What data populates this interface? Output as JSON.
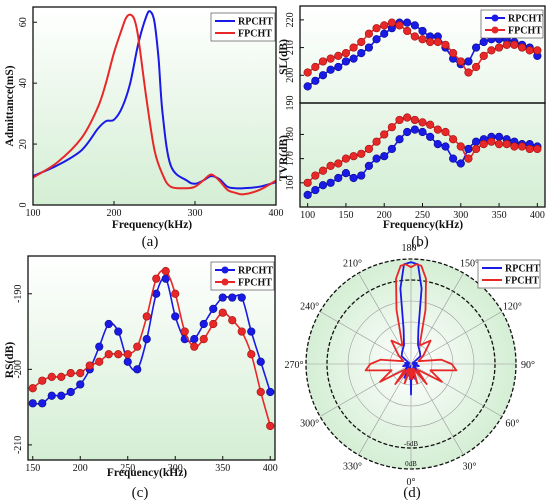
{
  "colors": {
    "blue": "#1a1ae6",
    "red": "#e82828",
    "bg_top": "#ffffff",
    "bg_bottom": "#d4eed4"
  },
  "legend": {
    "rp": "RPCHT",
    "fp": "FPCHT"
  },
  "chart_data": [
    {
      "type": "line",
      "panel": "(a)",
      "xlabel": "Frequency(kHz)",
      "ylabel": "Admittance(mS)",
      "xlim": [
        100,
        400
      ],
      "ylim": [
        0,
        65
      ],
      "xticks": [
        100,
        200,
        300,
        400
      ],
      "yticks": [
        0,
        20,
        40,
        60
      ],
      "series": [
        {
          "name": "RPCHT",
          "x": [
            100,
            130,
            160,
            180,
            190,
            200,
            210,
            220,
            230,
            240,
            245,
            250,
            255,
            260,
            270,
            290,
            300,
            310,
            320,
            330,
            340,
            350,
            360,
            380,
            400
          ],
          "y": [
            9.5,
            13,
            18,
            25,
            27.5,
            28,
            32,
            40,
            53,
            62,
            63.5,
            60,
            48,
            30,
            13,
            8,
            7,
            8,
            9.5,
            8.5,
            6,
            5.5,
            5.5,
            6,
            7.5
          ]
        },
        {
          "name": "FPCHT",
          "x": [
            100,
            130,
            160,
            180,
            190,
            200,
            210,
            215,
            220,
            225,
            230,
            240,
            250,
            260,
            270,
            290,
            300,
            310,
            320,
            330,
            340,
            350,
            360,
            380,
            400
          ],
          "y": [
            9,
            14,
            22,
            32,
            40,
            50,
            58,
            61.5,
            62.5,
            61,
            55,
            35,
            18,
            10,
            6,
            5.5,
            6,
            8,
            10,
            8,
            5,
            4,
            3.5,
            5,
            8
          ]
        }
      ]
    },
    {
      "type": "line",
      "panel": "(b) upper",
      "xlabel": "",
      "ylabel": "SL(dB)",
      "xlim": [
        90,
        410
      ],
      "ylim": [
        190,
        225
      ],
      "xticks": [
        100,
        150,
        200,
        250,
        300,
        350,
        400
      ],
      "yticks": [
        190,
        200,
        210,
        220
      ],
      "series": [
        {
          "name": "RPCHT",
          "x": [
            100,
            110,
            120,
            130,
            140,
            150,
            160,
            170,
            180,
            190,
            200,
            210,
            220,
            230,
            240,
            250,
            260,
            270,
            280,
            290,
            300,
            310,
            320,
            330,
            340,
            350,
            360,
            370,
            380,
            390,
            400
          ],
          "y": [
            196,
            198,
            200,
            202,
            203,
            205,
            206,
            208,
            210,
            213,
            215,
            217,
            219,
            219,
            218,
            216,
            214,
            214,
            210,
            206,
            204,
            205,
            210,
            212,
            213,
            213,
            213,
            212,
            211,
            210,
            207
          ]
        },
        {
          "name": "FPCHT",
          "x": [
            100,
            110,
            120,
            130,
            140,
            150,
            160,
            170,
            180,
            190,
            200,
            210,
            220,
            230,
            240,
            250,
            260,
            270,
            280,
            290,
            300,
            310,
            320,
            330,
            340,
            350,
            360,
            370,
            380,
            390,
            400
          ],
          "y": [
            201,
            203,
            205,
            206,
            207,
            208,
            210,
            212,
            215,
            217,
            218,
            219,
            218,
            216,
            214,
            213,
            212,
            212,
            211,
            208,
            205,
            201,
            203,
            207,
            209,
            210,
            211,
            211,
            210,
            209,
            209
          ]
        }
      ]
    },
    {
      "type": "line",
      "panel": "(b) lower",
      "xlabel": "Frequency(kHz)",
      "ylabel": "TVR(dB)",
      "xlim": [
        90,
        410
      ],
      "ylim": [
        150,
        193
      ],
      "xticks": [
        100,
        150,
        200,
        250,
        300,
        350,
        400
      ],
      "yticks": [
        160,
        170,
        180
      ],
      "series": [
        {
          "name": "RPCHT",
          "x": [
            100,
            110,
            120,
            130,
            140,
            150,
            160,
            170,
            180,
            190,
            200,
            210,
            220,
            230,
            240,
            250,
            260,
            270,
            280,
            290,
            300,
            310,
            320,
            330,
            340,
            350,
            360,
            370,
            380,
            390,
            400
          ],
          "y": [
            155,
            157,
            159,
            160,
            162,
            164,
            162,
            163,
            167,
            170,
            171,
            174,
            178,
            181,
            182,
            181,
            179,
            176,
            175,
            170,
            168,
            174,
            177,
            178,
            179,
            179,
            178,
            177,
            176,
            176,
            175
          ]
        },
        {
          "name": "FPCHT",
          "x": [
            100,
            110,
            120,
            130,
            140,
            150,
            160,
            170,
            180,
            190,
            200,
            210,
            220,
            230,
            240,
            250,
            260,
            270,
            280,
            290,
            300,
            310,
            320,
            330,
            340,
            350,
            360,
            370,
            380,
            390,
            400
          ],
          "y": [
            160,
            163,
            165,
            167,
            168,
            170,
            171,
            172,
            174,
            177,
            180,
            183,
            186,
            187,
            186,
            185,
            184,
            182,
            181,
            178,
            175,
            170,
            174,
            176,
            177,
            176,
            176,
            175,
            175,
            174,
            174
          ]
        }
      ]
    },
    {
      "type": "line",
      "panel": "(c)",
      "xlabel": "Frequency(kHz)",
      "ylabel": "RS(dB)",
      "xlim": [
        145,
        405
      ],
      "ylim": [
        -212,
        -185
      ],
      "xticks": [
        150,
        200,
        250,
        300,
        350,
        400
      ],
      "yticks": [
        -190,
        -200,
        -210
      ],
      "series": [
        {
          "name": "RPCHT",
          "x": [
            150,
            160,
            170,
            180,
            190,
            200,
            210,
            220,
            230,
            240,
            250,
            260,
            270,
            280,
            290,
            300,
            310,
            320,
            330,
            340,
            350,
            360,
            370,
            380,
            390,
            400
          ],
          "y": [
            -204.5,
            -204.5,
            -203.5,
            -203.5,
            -203,
            -202,
            -200,
            -197,
            -194,
            -195,
            -199,
            -200,
            -196,
            -190,
            -188,
            -193,
            -196,
            -196,
            -194,
            -192,
            -190.5,
            -190.5,
            -190.5,
            -195,
            -199,
            -203
          ]
        },
        {
          "name": "FPCHT",
          "x": [
            150,
            160,
            170,
            180,
            190,
            200,
            210,
            220,
            230,
            240,
            250,
            260,
            270,
            280,
            290,
            300,
            310,
            320,
            330,
            340,
            350,
            360,
            370,
            380,
            390,
            400
          ],
          "y": [
            -202.5,
            -201.5,
            -201,
            -201,
            -200.5,
            -200.5,
            -199.5,
            -199,
            -198,
            -198,
            -198,
            -197,
            -193,
            -188,
            -187,
            -190,
            -195,
            -197,
            -196,
            -194,
            -192.5,
            -193.5,
            -195,
            -198,
            -203,
            -207.5
          ]
        }
      ]
    },
    {
      "type": "line",
      "panel": "(d)",
      "subtype": "polar",
      "angle_labels": [
        "180°",
        "150°",
        "120°",
        "90°",
        "60°",
        "30°",
        "0°",
        "330°",
        "300°",
        "270°",
        "240°",
        "210°"
      ],
      "ring_labels": [
        "-6dB",
        "0dB"
      ],
      "series": [
        {
          "name": "RPCHT",
          "theta": [
            0,
            4,
            8,
            15,
            25,
            35,
            45,
            60,
            75,
            85,
            90,
            100,
            115,
            130,
            145,
            160,
            168,
            172,
            176,
            180,
            184,
            188,
            192,
            200,
            215,
            230,
            245,
            260,
            270,
            275,
            285,
            300,
            315,
            330,
            345,
            352,
            356,
            360
          ],
          "r": [
            0.3,
            0.05,
            0.12,
            0.02,
            0.15,
            0.04,
            0.1,
            0.03,
            0.08,
            0.05,
            0.02,
            0.06,
            0.02,
            0.12,
            0.15,
            0.2,
            0.35,
            0.75,
            0.98,
            1.0,
            0.98,
            0.75,
            0.35,
            0.2,
            0.15,
            0.12,
            0.02,
            0.06,
            0.02,
            0.05,
            0.08,
            0.03,
            0.1,
            0.04,
            0.15,
            0.12,
            0.05,
            0.3
          ]
        },
        {
          "name": "FPCHT",
          "theta": [
            0,
            5,
            10,
            18,
            28,
            38,
            48,
            60,
            72,
            82,
            90,
            98,
            110,
            125,
            140,
            155,
            165,
            170,
            174,
            177,
            180,
            183,
            186,
            190,
            195,
            205,
            220,
            235,
            250,
            262,
            270,
            278,
            288,
            300,
            312,
            322,
            332,
            342,
            350,
            355,
            360
          ],
          "r": [
            0.08,
            0.15,
            0.05,
            0.2,
            0.05,
            0.25,
            0.08,
            0.35,
            0.2,
            0.45,
            0.4,
            0.3,
            0.08,
            0.15,
            0.3,
            0.2,
            0.55,
            0.85,
            0.97,
            0.98,
            0.95,
            0.98,
            0.97,
            0.85,
            0.55,
            0.2,
            0.3,
            0.15,
            0.08,
            0.3,
            0.4,
            0.45,
            0.2,
            0.35,
            0.08,
            0.25,
            0.05,
            0.2,
            0.05,
            0.15,
            0.08
          ]
        }
      ]
    }
  ]
}
